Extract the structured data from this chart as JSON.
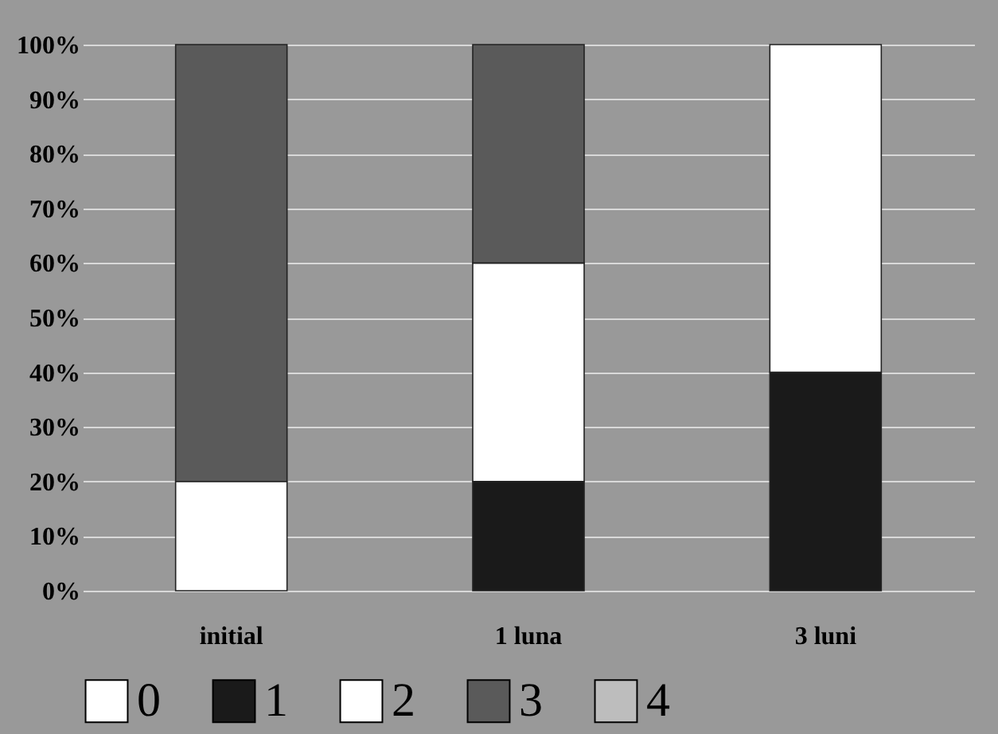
{
  "chart_data": {
    "type": "bar",
    "stacked": true,
    "categories": [
      "initial",
      "1 luna",
      "3 luni"
    ],
    "series": [
      {
        "name": "0",
        "color": "#ffffff",
        "values": [
          0,
          0,
          0
        ]
      },
      {
        "name": "1",
        "color": "#1a1a1a",
        "values": [
          0,
          20,
          40
        ]
      },
      {
        "name": "2",
        "color": "#ffffff",
        "values": [
          20,
          40,
          60
        ]
      },
      {
        "name": "3",
        "color": "#5a5a5a",
        "values": [
          80,
          40,
          0
        ]
      },
      {
        "name": "4",
        "color": "#bdbdbd",
        "values": [
          0,
          0,
          0
        ]
      }
    ],
    "ylim": [
      0,
      100
    ],
    "yticks": [
      {
        "value": 0,
        "label": "0%"
      },
      {
        "value": 10,
        "label": "10%"
      },
      {
        "value": 20,
        "label": "20%"
      },
      {
        "value": 30,
        "label": "30%"
      },
      {
        "value": 40,
        "label": "40%"
      },
      {
        "value": 50,
        "label": "50%"
      },
      {
        "value": 60,
        "label": "60%"
      },
      {
        "value": 70,
        "label": "70%"
      },
      {
        "value": 80,
        "label": "80%"
      },
      {
        "value": 90,
        "label": "90%"
      },
      {
        "value": 100,
        "label": "100%"
      }
    ],
    "grid": "y",
    "legend": "bottom"
  }
}
